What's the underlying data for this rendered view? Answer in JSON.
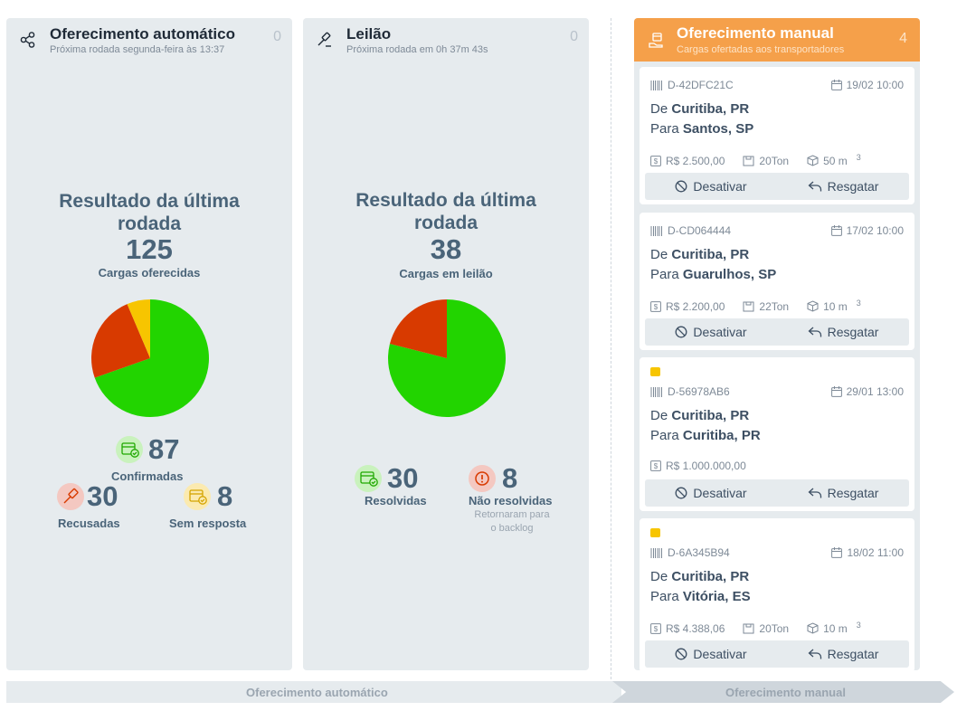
{
  "auto": {
    "title": "Oferecimento automático",
    "subtitle": "Próxima rodada segunda-feira às 13:37",
    "count": "0",
    "result_title_1": "Resultado da última",
    "result_title_2": "rodada",
    "result_num": "125",
    "result_label": "Cargas oferecidas",
    "pie": [
      {
        "label": "Confirmadas",
        "value": 87,
        "color": "#22d400"
      },
      {
        "label": "Recusadas",
        "value": 30,
        "color": "#d83a00"
      },
      {
        "label": "Sem resposta",
        "value": 8,
        "color": "#f7c500"
      }
    ],
    "stats": {
      "confirmed_num": "87",
      "confirmed_label": "Confirmadas",
      "refused_num": "30",
      "refused_label": "Recusadas",
      "noresp_num": "8",
      "noresp_label": "Sem resposta"
    }
  },
  "auction": {
    "title": "Leilão",
    "subtitle": "Próxima rodada em 0h 37m 43s",
    "count": "0",
    "result_title_1": "Resultado da última",
    "result_title_2": "rodada",
    "result_num": "38",
    "result_label": "Cargas em leilão",
    "pie": [
      {
        "label": "Resolvidas",
        "value": 30,
        "color": "#22d400"
      },
      {
        "label": "Não resolvidas",
        "value": 8,
        "color": "#d83a00"
      }
    ],
    "stats": {
      "resolved_num": "30",
      "resolved_label": "Resolvidas",
      "unresolved_num": "8",
      "unresolved_label": "Não resolvidas",
      "unresolved_note_1": "Retornaram para",
      "unresolved_note_2": "o backlog"
    }
  },
  "manual": {
    "title": "Oferecimento manual",
    "subtitle": "Cargas ofertadas aos transportadores",
    "count": "4",
    "deactivate_label": "Desativar",
    "redeem_label": "Resgatar",
    "cards": [
      {
        "code": "D-42DFC21C",
        "date": "19/02 10:00",
        "from_prefix": "De",
        "from": "Curitiba, PR",
        "to_prefix": "Para",
        "to": "Santos, SP",
        "price": "R$ 2.500,00",
        "weight": "20Ton",
        "volume": "50 m",
        "volume_sup": "3",
        "flag": false
      },
      {
        "code": "D-CD064444",
        "date": "17/02 10:00",
        "from_prefix": "De",
        "from": "Curitiba, PR",
        "to_prefix": "Para",
        "to": "Guarulhos, SP",
        "price": "R$ 2.200,00",
        "weight": "22Ton",
        "volume": "10 m",
        "volume_sup": "3",
        "flag": false
      },
      {
        "code": "D-56978AB6",
        "date": "29/01 13:00",
        "from_prefix": "De",
        "from": "Curitiba, PR",
        "to_prefix": "Para",
        "to": "Curitiba, PR",
        "price": "R$ 1.000.000,00",
        "weight": "",
        "volume": "",
        "volume_sup": "",
        "flag": true
      },
      {
        "code": "D-6A345B94",
        "date": "18/02 11:00",
        "from_prefix": "De",
        "from": "Curitiba, PR",
        "to_prefix": "Para",
        "to": "Vitória, ES",
        "price": "R$ 4.388,06",
        "weight": "20Ton",
        "volume": "10 m",
        "volume_sup": "3",
        "flag": true
      }
    ]
  },
  "footer": {
    "left": "Oferecimento automático",
    "right": "Oferecimento manual"
  },
  "colors": {
    "accent": "#f5a04a",
    "green": "#22d400",
    "red": "#d83a00",
    "yellow": "#f7c500"
  }
}
